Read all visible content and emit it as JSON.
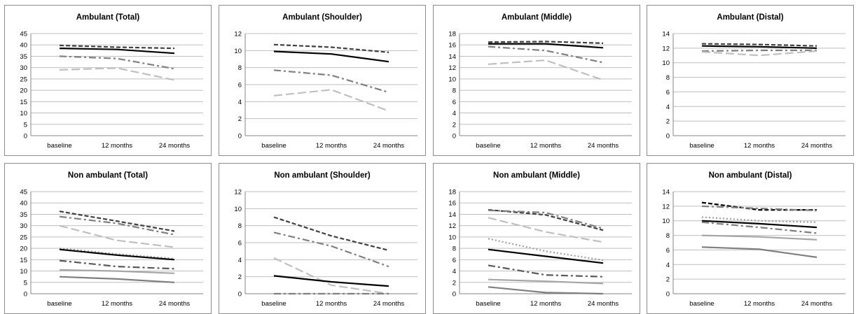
{
  "chart_data": [
    {
      "type": "line",
      "title": "Ambulant (Total)",
      "categories": [
        "baseline",
        "12 months",
        "24 months"
      ],
      "ylim": [
        0,
        45
      ],
      "ystep": 5,
      "grid": true,
      "series": [
        {
          "values": [
            39.8,
            39.0,
            38.5
          ],
          "color": "#404040",
          "style": "dash"
        },
        {
          "values": [
            38.5,
            38.0,
            36.3
          ],
          "color": "#000000",
          "style": "solid"
        },
        {
          "values": [
            35.0,
            34.0,
            29.5
          ],
          "color": "#7f7f7f",
          "style": "dashdot"
        },
        {
          "values": [
            29.0,
            29.8,
            24.5
          ],
          "color": "#bfbfbf",
          "style": "longdash"
        }
      ]
    },
    {
      "type": "line",
      "title": "Ambulant (Shoulder)",
      "categories": [
        "baseline",
        "12 months",
        "24 months"
      ],
      "ylim": [
        0,
        12
      ],
      "ystep": 2,
      "grid": true,
      "series": [
        {
          "values": [
            10.7,
            10.4,
            9.8
          ],
          "color": "#404040",
          "style": "dash"
        },
        {
          "values": [
            9.9,
            9.6,
            8.7
          ],
          "color": "#000000",
          "style": "solid"
        },
        {
          "values": [
            7.7,
            7.1,
            5.1
          ],
          "color": "#7f7f7f",
          "style": "dashdot"
        },
        {
          "values": [
            4.7,
            5.4,
            2.9
          ],
          "color": "#bfbfbf",
          "style": "longdash"
        }
      ]
    },
    {
      "type": "line",
      "title": "Ambulant (Middle)",
      "categories": [
        "baseline",
        "12 months",
        "24 months"
      ],
      "ylim": [
        0,
        18
      ],
      "ystep": 2,
      "grid": true,
      "series": [
        {
          "values": [
            16.5,
            16.6,
            16.3
          ],
          "color": "#404040",
          "style": "dash"
        },
        {
          "values": [
            16.2,
            16.2,
            15.5
          ],
          "color": "#000000",
          "style": "solid"
        },
        {
          "values": [
            15.7,
            15.0,
            12.9
          ],
          "color": "#7f7f7f",
          "style": "dashdot"
        },
        {
          "values": [
            12.6,
            13.3,
            9.8
          ],
          "color": "#bfbfbf",
          "style": "longdash"
        }
      ]
    },
    {
      "type": "line",
      "title": "Ambulant (Distal)",
      "categories": [
        "baseline",
        "12 months",
        "24 months"
      ],
      "ylim": [
        0,
        14
      ],
      "ystep": 2,
      "grid": true,
      "series": [
        {
          "values": [
            12.6,
            12.5,
            12.3
          ],
          "color": "#404040",
          "style": "dash"
        },
        {
          "values": [
            12.3,
            12.2,
            12.0
          ],
          "color": "#000000",
          "style": "solid"
        },
        {
          "values": [
            11.6,
            11.7,
            11.7
          ],
          "color": "#7f7f7f",
          "style": "dashdot"
        },
        {
          "values": [
            11.5,
            11.0,
            11.6
          ],
          "color": "#bfbfbf",
          "style": "longdash"
        }
      ]
    },
    {
      "type": "line",
      "title": "Non ambulant (Total)",
      "categories": [
        "baseline",
        "12 months",
        "24 months"
      ],
      "ylim": [
        0,
        45
      ],
      "ystep": 5,
      "grid": true,
      "series": [
        {
          "values": [
            36.3,
            32.0,
            27.6
          ],
          "color": "#404040",
          "style": "dash"
        },
        {
          "values": [
            34.0,
            31.0,
            26.0
          ],
          "color": "#7f7f7f",
          "style": "dashdot"
        },
        {
          "values": [
            30.0,
            23.5,
            20.5
          ],
          "color": "#bfbfbf",
          "style": "longdash"
        },
        {
          "values": [
            20.0,
            17.5,
            15.5
          ],
          "color": "#9f9f9f",
          "style": "dot"
        },
        {
          "values": [
            19.5,
            17.0,
            15.0
          ],
          "color": "#000000",
          "style": "solid"
        },
        {
          "values": [
            14.6,
            12.0,
            11.0
          ],
          "color": "#595959",
          "style": "dashdot"
        },
        {
          "values": [
            10.5,
            10.0,
            9.0
          ],
          "color": "#a6a6a6",
          "style": "solid"
        },
        {
          "values": [
            7.5,
            6.5,
            5.0
          ],
          "color": "#7f7f7f",
          "style": "solid"
        }
      ]
    },
    {
      "type": "line",
      "title": "Non ambulant (Shoulder)",
      "categories": [
        "baseline",
        "12 months",
        "24 months"
      ],
      "ylim": [
        0,
        12
      ],
      "ystep": 2,
      "grid": true,
      "series": [
        {
          "values": [
            9.0,
            6.8,
            5.1
          ],
          "color": "#404040",
          "style": "dash"
        },
        {
          "values": [
            7.2,
            5.6,
            3.2
          ],
          "color": "#7f7f7f",
          "style": "dashdot"
        },
        {
          "values": [
            4.2,
            1.0,
            0.0
          ],
          "color": "#bfbfbf",
          "style": "longdash"
        },
        {
          "values": [
            2.1,
            1.4,
            0.9
          ],
          "color": "#000000",
          "style": "solid"
        },
        {
          "values": [
            0.0,
            0.0,
            0.0
          ],
          "color": "#7f7f7f",
          "style": "dashdot"
        }
      ]
    },
    {
      "type": "line",
      "title": "Non ambulant (Middle)",
      "categories": [
        "baseline",
        "12 months",
        "24 months"
      ],
      "ylim": [
        0,
        18
      ],
      "ystep": 2,
      "grid": true,
      "series": [
        {
          "values": [
            14.8,
            13.9,
            11.2
          ],
          "color": "#404040",
          "style": "dash"
        },
        {
          "values": [
            14.7,
            14.3,
            11.5
          ],
          "color": "#7f7f7f",
          "style": "dashdot"
        },
        {
          "values": [
            13.4,
            10.9,
            9.1
          ],
          "color": "#bfbfbf",
          "style": "longdash"
        },
        {
          "values": [
            9.7,
            7.5,
            5.9
          ],
          "color": "#9f9f9f",
          "style": "dot"
        },
        {
          "values": [
            7.8,
            6.6,
            5.4
          ],
          "color": "#000000",
          "style": "solid"
        },
        {
          "values": [
            5.0,
            3.3,
            3.0
          ],
          "color": "#595959",
          "style": "dashdot"
        },
        {
          "values": [
            2.5,
            2.2,
            1.8
          ],
          "color": "#a6a6a6",
          "style": "solid"
        },
        {
          "values": [
            1.2,
            0.2,
            0.0
          ],
          "color": "#7f7f7f",
          "style": "solid"
        }
      ]
    },
    {
      "type": "line",
      "title": "Non ambulant (Distal)",
      "categories": [
        "baseline",
        "12 months",
        "24 months"
      ],
      "ylim": [
        0,
        14
      ],
      "ystep": 2,
      "grid": true,
      "series": [
        {
          "values": [
            12.5,
            11.5,
            11.5
          ],
          "color": "#000000",
          "style": "dash"
        },
        {
          "values": [
            12.0,
            11.7,
            11.4
          ],
          "color": "#7f7f7f",
          "style": "dashdot"
        },
        {
          "values": [
            10.5,
            10.0,
            9.8
          ],
          "color": "#9f9f9f",
          "style": "dot"
        },
        {
          "values": [
            10.0,
            9.6,
            9.1
          ],
          "color": "#000000",
          "style": "solid"
        },
        {
          "values": [
            9.8,
            9.1,
            8.3
          ],
          "color": "#7f7f7f",
          "style": "dashdot"
        },
        {
          "values": [
            8.0,
            7.8,
            7.4
          ],
          "color": "#a6a6a6",
          "style": "solid"
        },
        {
          "values": [
            6.4,
            6.1,
            5.0
          ],
          "color": "#7f7f7f",
          "style": "solid"
        }
      ]
    }
  ]
}
